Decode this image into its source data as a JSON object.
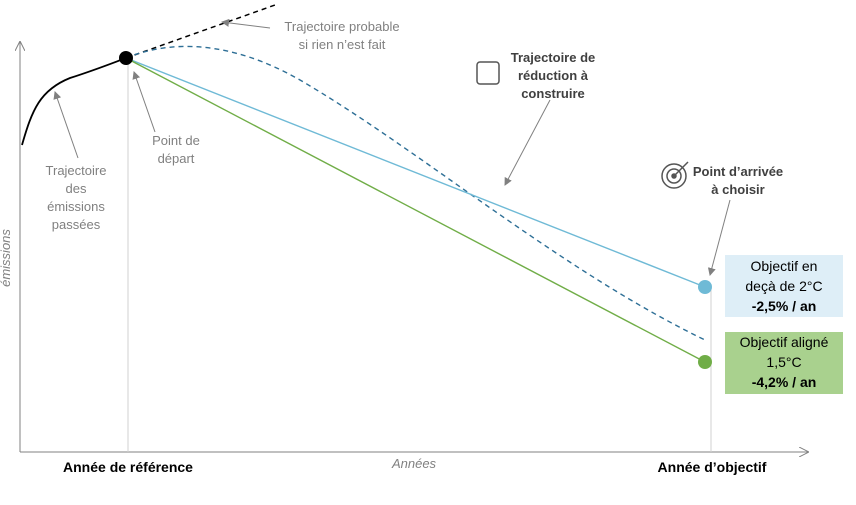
{
  "x_axis": {
    "label": "Années",
    "start_label": "Année de référence",
    "end_label": "Année d’objectif"
  },
  "y_axis": {
    "label": "émissions"
  },
  "annotations": {
    "probable": [
      "Trajectoire probable",
      "si rien n’est fait"
    ],
    "reduction": [
      "Trajectoire de",
      "réduction à",
      "construire"
    ],
    "start": [
      "Point de",
      "départ"
    ],
    "past": [
      "Trajectoire",
      "des",
      "émissions",
      "passées"
    ],
    "arrival": [
      "Point d’arrivée",
      "à choisir"
    ]
  },
  "targets": [
    {
      "lines": [
        "Objectif en",
        "deçà de 2°C"
      ],
      "rate": "-2,5% / an"
    },
    {
      "lines": [
        "Objectif aligné",
        "1,5°C"
      ],
      "rate": "-4,2% / an"
    }
  ]
}
